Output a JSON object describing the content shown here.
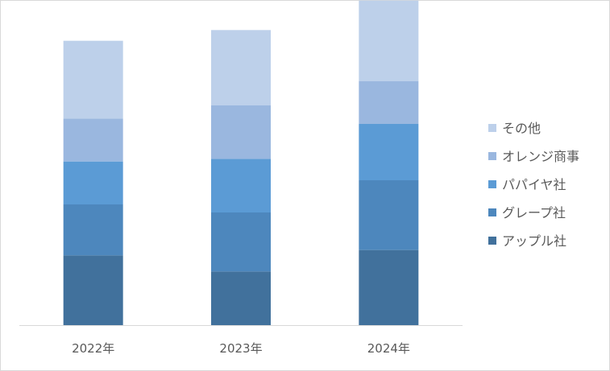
{
  "chart_data": {
    "type": "bar",
    "stacked": true,
    "categories": [
      "2022年",
      "2023年",
      "2024年"
    ],
    "series": [
      {
        "name": "アップル社",
        "color": "#41719c",
        "values": [
          13,
          10,
          14
        ]
      },
      {
        "name": "グレープ社",
        "color": "#4d87bd",
        "values": [
          9.5,
          11,
          13
        ]
      },
      {
        "name": "パパイヤ社",
        "color": "#5b9bd5",
        "values": [
          8,
          10,
          10.5
        ]
      },
      {
        "name": "オレンジ商事",
        "color": "#9ab7df",
        "values": [
          8,
          10,
          8
        ]
      },
      {
        "name": "その他",
        "color": "#bdd0ea",
        "values": [
          14.5,
          14,
          15
        ]
      }
    ],
    "legend_position": "right",
    "legend_order": "reverse",
    "ylim": [
      0,
      60
    ],
    "grid": false,
    "yaxis_visible": false
  }
}
